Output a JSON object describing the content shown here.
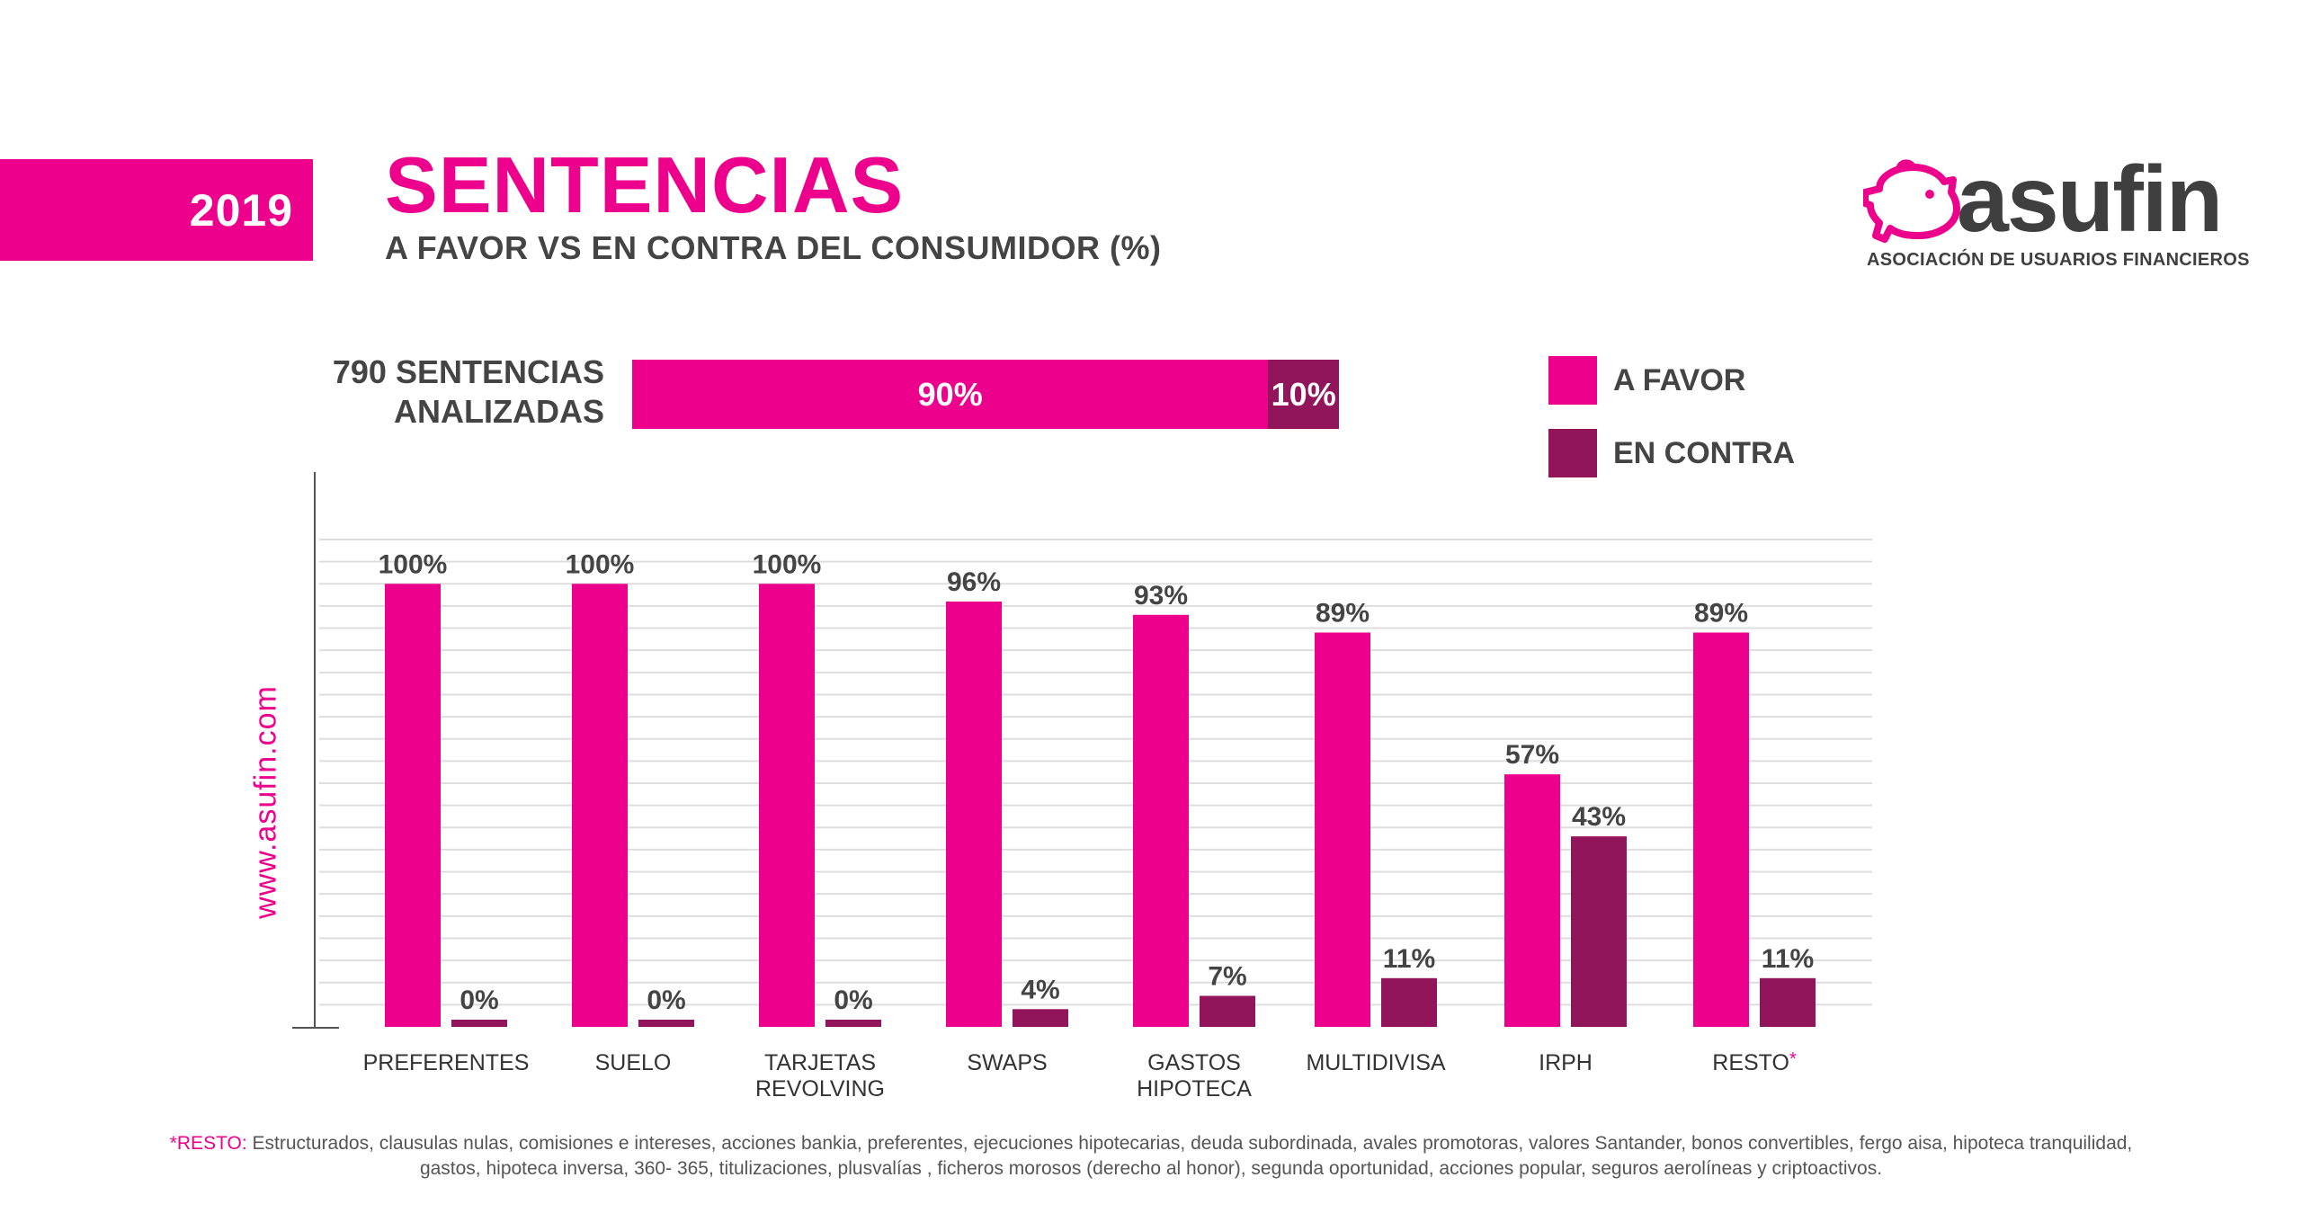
{
  "header": {
    "year": "2019",
    "title": "SENTENCIAS",
    "subtitle": "A FAVOR VS EN CONTRA DEL CONSUMIDOR (%)"
  },
  "logo": {
    "name": "asufin",
    "tagline": "ASOCIACIÓN DE USUARIOS FINANCIEROS"
  },
  "summary": {
    "label_line1": "790 SENTENCIAS",
    "label_line2": "ANALIZADAS",
    "favor_label": "90%",
    "contra_label": "10%",
    "favor_value": 90,
    "contra_value": 10
  },
  "side_text": "www.asufin.com",
  "colors": {
    "favor": "#ec008c",
    "contra": "#92145a",
    "grid": "#dedede",
    "text": "#3f3f3f"
  },
  "chart_data": {
    "type": "bar",
    "title": "SENTENCIAS A FAVOR VS EN CONTRA DEL CONSUMIDOR (%)",
    "categories": [
      [
        "PREFERENTES"
      ],
      [
        "SUELO"
      ],
      [
        "TARJETAS",
        "REVOLVING"
      ],
      [
        "SWAPS"
      ],
      [
        "GASTOS",
        "HIPOTECA"
      ],
      [
        "MULTIDIVISA"
      ],
      [
        "IRPH"
      ],
      [
        "RESTO"
      ]
    ],
    "category_marks": [
      "",
      "",
      "",
      "",
      "",
      "",
      "",
      "*"
    ],
    "series": [
      {
        "name": "A FAVOR",
        "values": [
          100,
          100,
          100,
          96,
          93,
          89,
          57,
          89
        ],
        "labels": [
          "100%",
          "100%",
          "100%",
          "96%",
          "93%",
          "89%",
          "57%",
          "89%"
        ]
      },
      {
        "name": "EN CONTRA",
        "values": [
          0,
          0,
          0,
          4,
          7,
          11,
          43,
          11
        ],
        "labels": [
          "0%",
          "0%",
          "0%",
          "4%",
          "7%",
          "11%",
          "43%",
          "11%"
        ]
      }
    ],
    "ylim": [
      0,
      110
    ],
    "grid_step": 5,
    "xlabel": "",
    "ylabel": "",
    "legend_position": "top-right"
  },
  "footnote": {
    "mark": "*RESTO:",
    "line1": "Estructurados, clausulas nulas, comisiones e intereses, acciones bankia, preferentes, ejecuciones hipotecarias, deuda subordinada, avales promotoras, valores Santander, bonos convertibles, fergo aisa, hipoteca tranquilidad,",
    "line2": "gastos, hipoteca inversa, 360- 365, titulizaciones, plusvalías , ficheros morosos (derecho al honor), segunda oportunidad, acciones popular, seguros aerolíneas y criptoactivos."
  }
}
